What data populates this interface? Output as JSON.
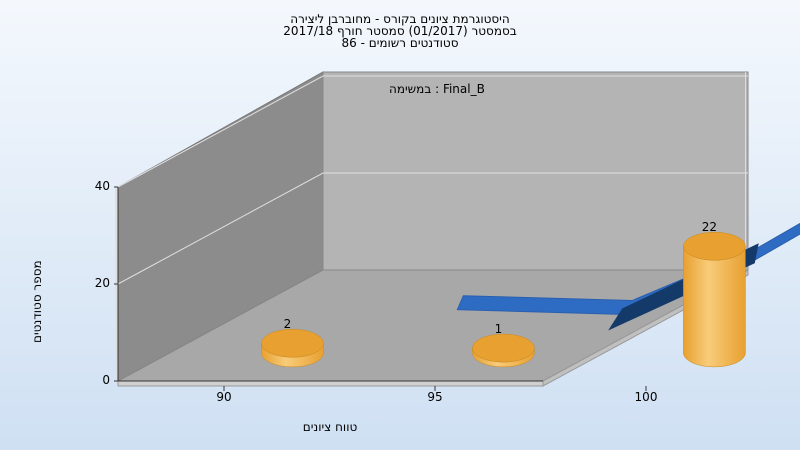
{
  "chart_data": {
    "type": "bar",
    "title_lines": [
      "היסטוגרמת ציונים בקורס - מחוברבן ליצירה",
      "בסמסטר  (01/2017)  סמסטר חורף 2017/18",
      "סטודנטים רשומים - 86"
    ],
    "series_label": "במשימה : Final_B",
    "xlabel": "טווח ציונים",
    "ylabel": "מספר סטודנטים",
    "ylim": [
      0,
      40
    ],
    "yticks": [
      0,
      20,
      40
    ],
    "xticks": [
      90,
      95,
      100
    ],
    "bars": [
      {
        "x": 90,
        "value": 2
      },
      {
        "x": 95,
        "value": 1
      },
      {
        "x": 100,
        "value": 22
      }
    ],
    "area": [
      {
        "x": 93,
        "value": 5
      },
      {
        "x": 97,
        "value": 4
      },
      {
        "x": 100,
        "value": 15
      },
      {
        "x": 103,
        "value": 30
      },
      {
        "x": 105,
        "value": 35
      }
    ],
    "colors": {
      "bar": "#e8a030",
      "bar_light": "#f8cc7a",
      "area": "#2e6cc4",
      "area_shadow": "#143a6a",
      "back_wall": "#b4b4b4",
      "side_wall": "#8c8c8c",
      "floor": "#a8a8a8"
    }
  }
}
